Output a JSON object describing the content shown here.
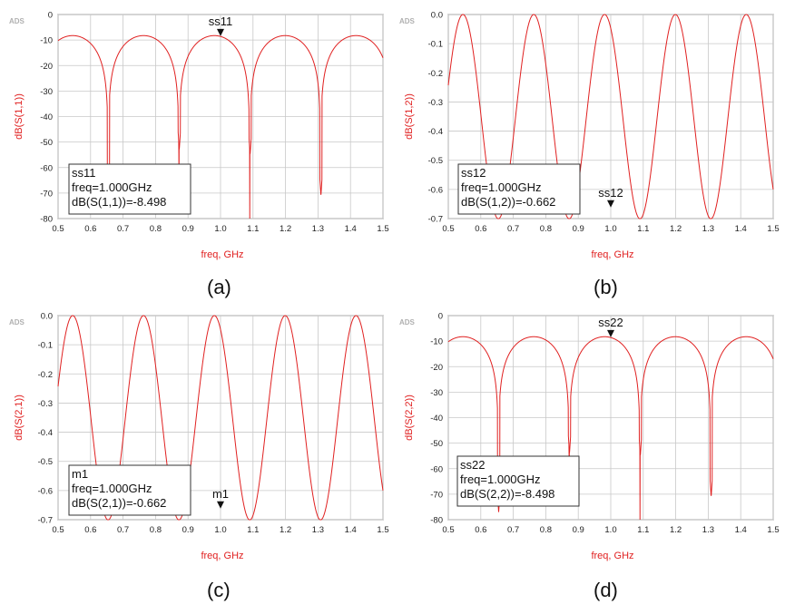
{
  "watermark": "ADS",
  "colors": {
    "trace": "#e02020",
    "grid": "#c8c8c8",
    "axis_text": "#e02020"
  },
  "chart_data": [
    {
      "type": "line",
      "panel_label": "(a)",
      "xlabel": "freq, GHz",
      "ylabel": "dB(S(1,1))",
      "xlim": [
        0.5,
        1.5
      ],
      "ylim": [
        -80,
        0
      ],
      "xticks": [
        "0.5",
        "0.6",
        "0.7",
        "0.8",
        "0.9",
        "1.0",
        "1.1",
        "1.2",
        "1.3",
        "1.4",
        "1.5"
      ],
      "yticks": [
        "0",
        "-10",
        "-20",
        "-30",
        "-40",
        "-50",
        "-60",
        "-70",
        "-80"
      ],
      "grid": true,
      "curve": "reflection",
      "dips": [
        {
          "f": 0.655,
          "depth": -70
        },
        {
          "f": 0.873,
          "depth": -53
        },
        {
          "f": 1.091,
          "depth": -55
        },
        {
          "f": 1.309,
          "depth": -71
        }
      ],
      "marker": {
        "name": "ss11",
        "x": 1.0,
        "y": -8.498
      },
      "marker_box": {
        "lines": [
          "ss11",
          "freq=1.000GHz",
          "dB(S(1,1))=-8.498"
        ],
        "position": "bottom-left"
      }
    },
    {
      "type": "line",
      "panel_label": "(b)",
      "xlabel": "freq, GHz",
      "ylabel": "dB(S(1,2))",
      "xlim": [
        0.5,
        1.5
      ],
      "ylim": [
        -0.7,
        0.0
      ],
      "xticks": [
        "0.5",
        "0.6",
        "0.7",
        "0.8",
        "0.9",
        "1.0",
        "1.1",
        "1.2",
        "1.3",
        "1.4",
        "1.5"
      ],
      "yticks": [
        "0.0",
        "-0.1",
        "-0.2",
        "-0.3",
        "-0.4",
        "-0.5",
        "-0.6",
        "-0.7"
      ],
      "grid": true,
      "curve": "transmission",
      "marker": {
        "name": "ss12",
        "x": 1.0,
        "y": -0.662
      },
      "marker_box": {
        "lines": [
          "ss12",
          "freq=1.000GHz",
          "dB(S(1,2))=-0.662"
        ],
        "position": "bottom-left"
      }
    },
    {
      "type": "line",
      "panel_label": "(c)",
      "xlabel": "freq, GHz",
      "ylabel": "dB(S(2,1))",
      "xlim": [
        0.5,
        1.5
      ],
      "ylim": [
        -0.7,
        0.0
      ],
      "xticks": [
        "0.5",
        "0.6",
        "0.7",
        "0.8",
        "0.9",
        "1.0",
        "1.1",
        "1.2",
        "1.3",
        "1.4",
        "1.5"
      ],
      "yticks": [
        "0.0",
        "-0.1",
        "-0.2",
        "-0.3",
        "-0.4",
        "-0.5",
        "-0.6",
        "-0.7"
      ],
      "grid": true,
      "curve": "transmission",
      "marker": {
        "name": "m1",
        "x": 1.0,
        "y": -0.662
      },
      "marker_box": {
        "lines": [
          "m1",
          "freq=1.000GHz",
          "dB(S(2,1))=-0.662"
        ],
        "position": "bottom-left"
      }
    },
    {
      "type": "line",
      "panel_label": "(d)",
      "xlabel": "freq, GHz",
      "ylabel": "dB(S(2,2))",
      "xlim": [
        0.5,
        1.5
      ],
      "ylim": [
        -80,
        0
      ],
      "xticks": [
        "0.5",
        "0.6",
        "0.7",
        "0.8",
        "0.9",
        "1.0",
        "1.1",
        "1.2",
        "1.3",
        "1.4",
        "1.5"
      ],
      "yticks": [
        "0",
        "-10",
        "-20",
        "-30",
        "-40",
        "-50",
        "-60",
        "-70",
        "-80"
      ],
      "grid": true,
      "curve": "reflection",
      "dips": [
        {
          "f": 0.655,
          "depth": -77
        },
        {
          "f": 0.873,
          "depth": -54
        },
        {
          "f": 1.091,
          "depth": -55
        },
        {
          "f": 1.309,
          "depth": -71
        }
      ],
      "marker": {
        "name": "ss22",
        "x": 1.0,
        "y": -8.498
      },
      "marker_box": {
        "lines": [
          "ss22",
          "freq=1.000GHz",
          "dB(S(2,2))=-8.498"
        ],
        "position": "bottom-left"
      }
    }
  ]
}
